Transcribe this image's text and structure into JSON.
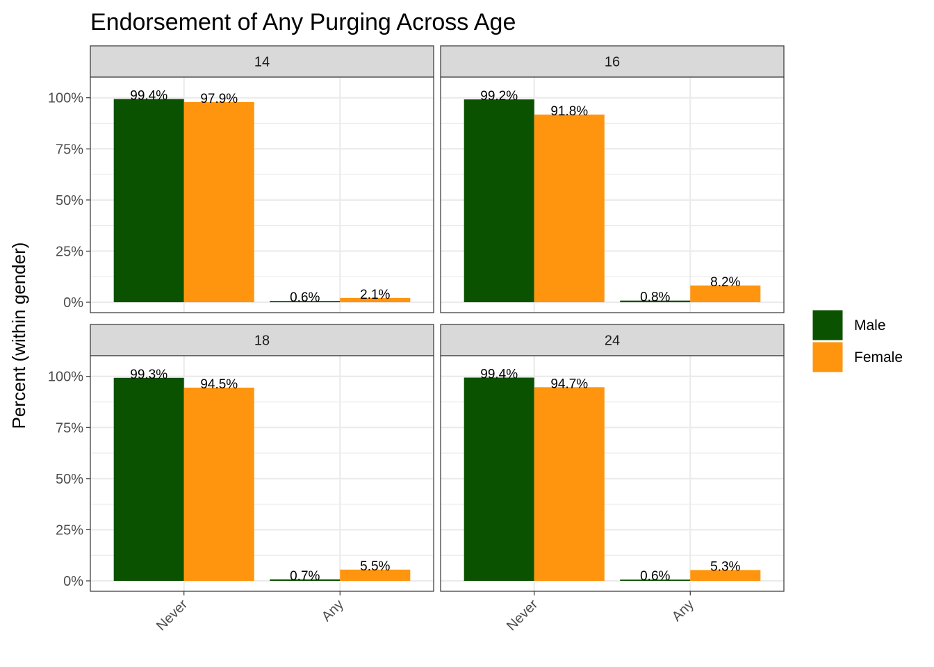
{
  "chart_data": {
    "type": "bar",
    "title": "Endorsement of Any Purging Across Age",
    "xlabel": "",
    "ylabel": "Percent (within gender)",
    "ylim": [
      0,
      1.05
    ],
    "y_ticks": [
      0,
      0.25,
      0.5,
      0.75,
      1.0
    ],
    "y_tick_labels": [
      "0%",
      "25%",
      "50%",
      "75%",
      "100%"
    ],
    "categories": [
      "Never",
      "Any"
    ],
    "grid": true,
    "legend_position": "right",
    "series_names": [
      "Male",
      "Female"
    ],
    "colors": {
      "Male": "#0b5200",
      "Female": "#ff950e"
    },
    "facets": [
      {
        "label": "14",
        "series": [
          {
            "name": "Male",
            "values": [
              0.994,
              0.006
            ],
            "labels": [
              "99.4%",
              "0.6%"
            ]
          },
          {
            "name": "Female",
            "values": [
              0.979,
              0.021
            ],
            "labels": [
              "97.9%",
              "2.1%"
            ]
          }
        ]
      },
      {
        "label": "16",
        "series": [
          {
            "name": "Male",
            "values": [
              0.992,
              0.008
            ],
            "labels": [
              "99.2%",
              "0.8%"
            ]
          },
          {
            "name": "Female",
            "values": [
              0.918,
              0.082
            ],
            "labels": [
              "91.8%",
              "8.2%"
            ]
          }
        ]
      },
      {
        "label": "18",
        "series": [
          {
            "name": "Male",
            "values": [
              0.993,
              0.007
            ],
            "labels": [
              "99.3%",
              "0.7%"
            ]
          },
          {
            "name": "Female",
            "values": [
              0.945,
              0.055
            ],
            "labels": [
              "94.5%",
              "5.5%"
            ]
          }
        ]
      },
      {
        "label": "24",
        "series": [
          {
            "name": "Male",
            "values": [
              0.994,
              0.006
            ],
            "labels": [
              "99.4%",
              "0.6%"
            ]
          },
          {
            "name": "Female",
            "values": [
              0.947,
              0.053
            ],
            "labels": [
              "94.7%",
              "5.3%"
            ]
          }
        ]
      }
    ]
  }
}
